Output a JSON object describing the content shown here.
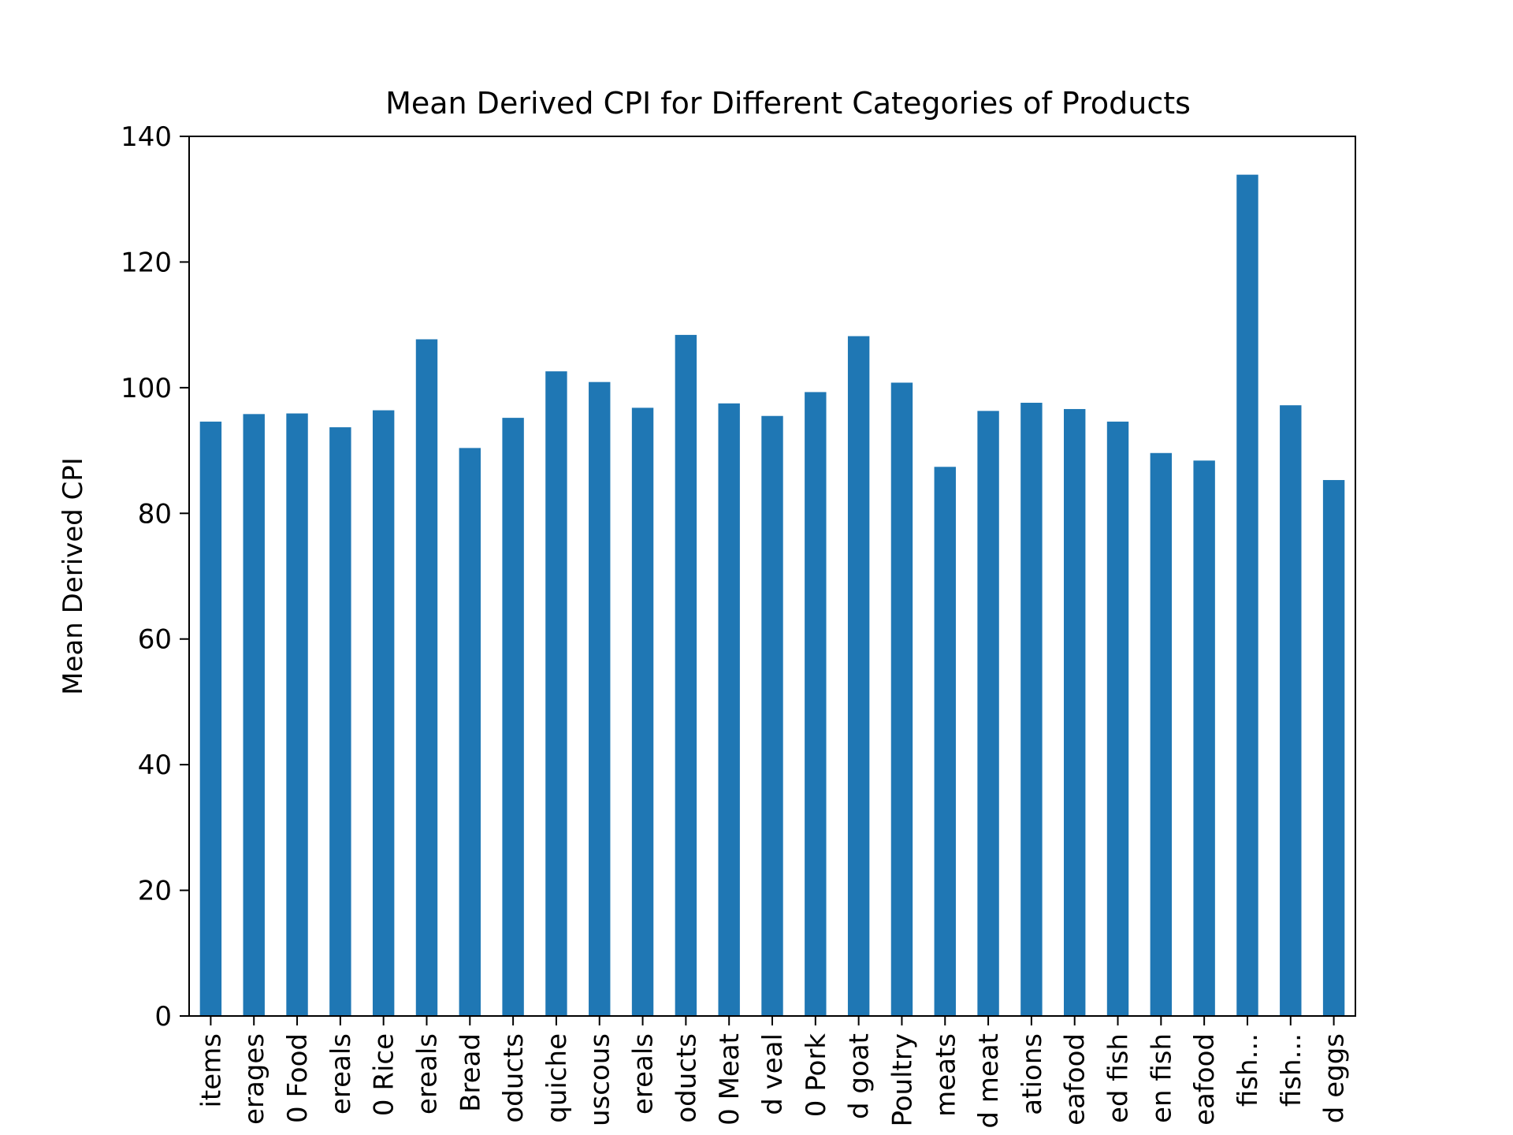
{
  "chart_data": {
    "type": "bar",
    "title": "Mean Derived CPI for Different Categories of Products",
    "xlabel": "",
    "ylabel": "Mean Derived CPI",
    "ylim": [
      0,
      140
    ],
    "yticks": [
      0,
      20,
      40,
      60,
      80,
      100,
      120,
      140
    ],
    "grid": false,
    "legend": "none",
    "bar_color": "#1f77b4",
    "categories": [
      "items",
      "erages",
      "0 Food",
      "ereals",
      "0 Rice",
      "ereals",
      "Bread",
      "oducts",
      "quiche",
      "uscous",
      "ereals",
      "oducts",
      "0 Meat",
      "d veal",
      "0 Pork",
      "d goat",
      "Poultry",
      "meats",
      "d meat",
      "ations",
      "eafood",
      "ed fish",
      "en fish",
      "eafood",
      "fish...",
      "fish...",
      "d eggs"
    ],
    "values": [
      94.6,
      95.8,
      95.9,
      93.7,
      96.4,
      107.7,
      90.4,
      95.2,
      102.6,
      100.9,
      96.8,
      108.4,
      97.5,
      95.5,
      99.3,
      108.2,
      100.8,
      87.4,
      96.3,
      97.6,
      96.6,
      94.6,
      89.6,
      88.4,
      133.9,
      97.2,
      85.3
    ]
  }
}
